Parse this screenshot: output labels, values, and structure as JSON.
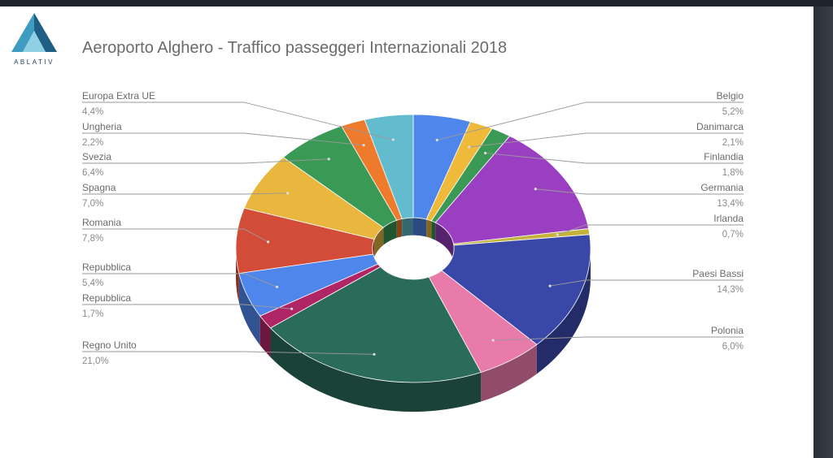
{
  "logo": {
    "text": "ABLATIV"
  },
  "chart_data": {
    "type": "pie",
    "title": "Aeroporto Alghero - Traffico passeggeri Internazionali 2018",
    "slices": [
      {
        "label": "Belgio",
        "value_label": "5,2%",
        "value": 5.2,
        "color": "#4f86ec"
      },
      {
        "label": "Danimarca",
        "value_label": "2,1%",
        "value": 2.1,
        "color": "#efb93a"
      },
      {
        "label": "Finlandia",
        "value_label": "1,8%",
        "value": 1.8,
        "color": "#3a9a55"
      },
      {
        "label": "Germania",
        "value_label": "13,4%",
        "value": 13.4,
        "color": "#9b3fc2"
      },
      {
        "label": "Irlanda",
        "value_label": "0,7%",
        "value": 0.7,
        "color": "#c4b23c"
      },
      {
        "label": "Paesi Bassi",
        "value_label": "14,3%",
        "value": 14.3,
        "color": "#3947a8"
      },
      {
        "label": "Polonia",
        "value_label": "6,0%",
        "value": 6.0,
        "color": "#e97bab"
      },
      {
        "label": "Regno Unito",
        "value_label": "21,0%",
        "value": 21.0,
        "color": "#2b6b5a"
      },
      {
        "label": "Repubblica",
        "value_label": "1,7%",
        "value": 1.7,
        "color": "#b02565"
      },
      {
        "label": "Repubblica",
        "value_label": "5,4%",
        "value": 5.4,
        "color": "#4f86ec"
      },
      {
        "label": "Romania",
        "value_label": "7,8%",
        "value": 7.8,
        "color": "#d34c37"
      },
      {
        "label": "Spagna",
        "value_label": "7,0%",
        "value": 7.0,
        "color": "#eab73e"
      },
      {
        "label": "Svezia",
        "value_label": "6,4%",
        "value": 6.4,
        "color": "#3a9a55"
      },
      {
        "label": "Ungheria",
        "value_label": "2,2%",
        "value": 2.2,
        "color": "#ee7a2c"
      },
      {
        "label": "Europa Extra UE",
        "value_label": "4,4%",
        "value": 4.4,
        "color": "#62bccd"
      }
    ]
  }
}
